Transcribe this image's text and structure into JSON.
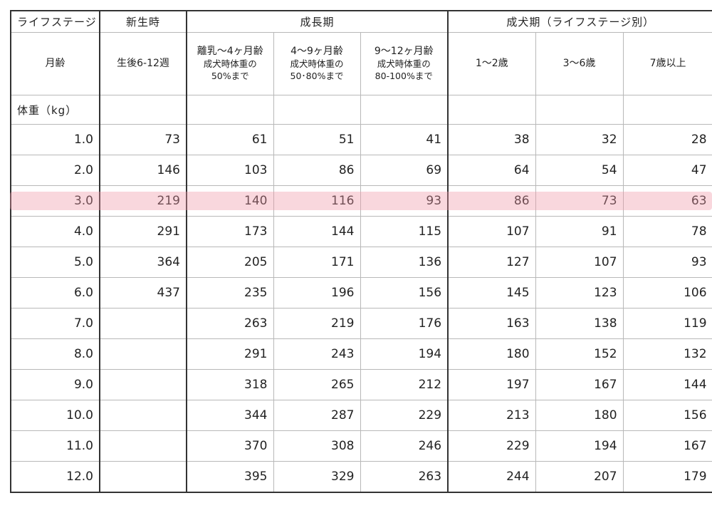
{
  "header": {
    "lifestage_label": "ライフステージ",
    "newborn": "新生時",
    "growth": "成長期",
    "adult": "成犬期（ライフステージ別）",
    "age_label": "月齢",
    "newborn_age": "生後6-12週",
    "growth_cols": [
      {
        "title": "離乳～4ヶ月齢",
        "sub1": "成犬時体重の",
        "sub2": "50%まで"
      },
      {
        "title": "4～9ヶ月齢",
        "sub1": "成犬時体重の",
        "sub2": "50･80%まで"
      },
      {
        "title": "9～12ヶ月齢",
        "sub1": "成犬時体重の",
        "sub2": "80-100%まで"
      }
    ],
    "adult_cols": [
      "1～2歳",
      "3～6歳",
      "7歳以上"
    ],
    "weight_label": "体重（kg）"
  },
  "rows": [
    {
      "w": "1.0",
      "v": [
        "73",
        "61",
        "51",
        "41",
        "38",
        "32",
        "28"
      ]
    },
    {
      "w": "2.0",
      "v": [
        "146",
        "103",
        "86",
        "69",
        "64",
        "54",
        "47"
      ]
    },
    {
      "w": "3.0",
      "v": [
        "219",
        "140",
        "116",
        "93",
        "86",
        "73",
        "63"
      ]
    },
    {
      "w": "4.0",
      "v": [
        "291",
        "173",
        "144",
        "115",
        "107",
        "91",
        "78"
      ]
    },
    {
      "w": "5.0",
      "v": [
        "364",
        "205",
        "171",
        "136",
        "127",
        "107",
        "93"
      ]
    },
    {
      "w": "6.0",
      "v": [
        "437",
        "235",
        "196",
        "156",
        "145",
        "123",
        "106"
      ]
    },
    {
      "w": "7.0",
      "v": [
        "",
        "263",
        "219",
        "176",
        "163",
        "138",
        "119"
      ]
    },
    {
      "w": "8.0",
      "v": [
        "",
        "291",
        "243",
        "194",
        "180",
        "152",
        "132"
      ]
    },
    {
      "w": "9.0",
      "v": [
        "",
        "318",
        "265",
        "212",
        "197",
        "167",
        "144"
      ]
    },
    {
      "w": "10.0",
      "v": [
        "",
        "344",
        "287",
        "229",
        "213",
        "180",
        "156"
      ]
    },
    {
      "w": "11.0",
      "v": [
        "",
        "370",
        "308",
        "246",
        "229",
        "194",
        "167"
      ]
    },
    {
      "w": "12.0",
      "v": [
        "",
        "395",
        "329",
        "263",
        "244",
        "207",
        "179"
      ]
    }
  ],
  "highlight": {
    "row_weight": "3.0",
    "color": "#f096a5"
  }
}
